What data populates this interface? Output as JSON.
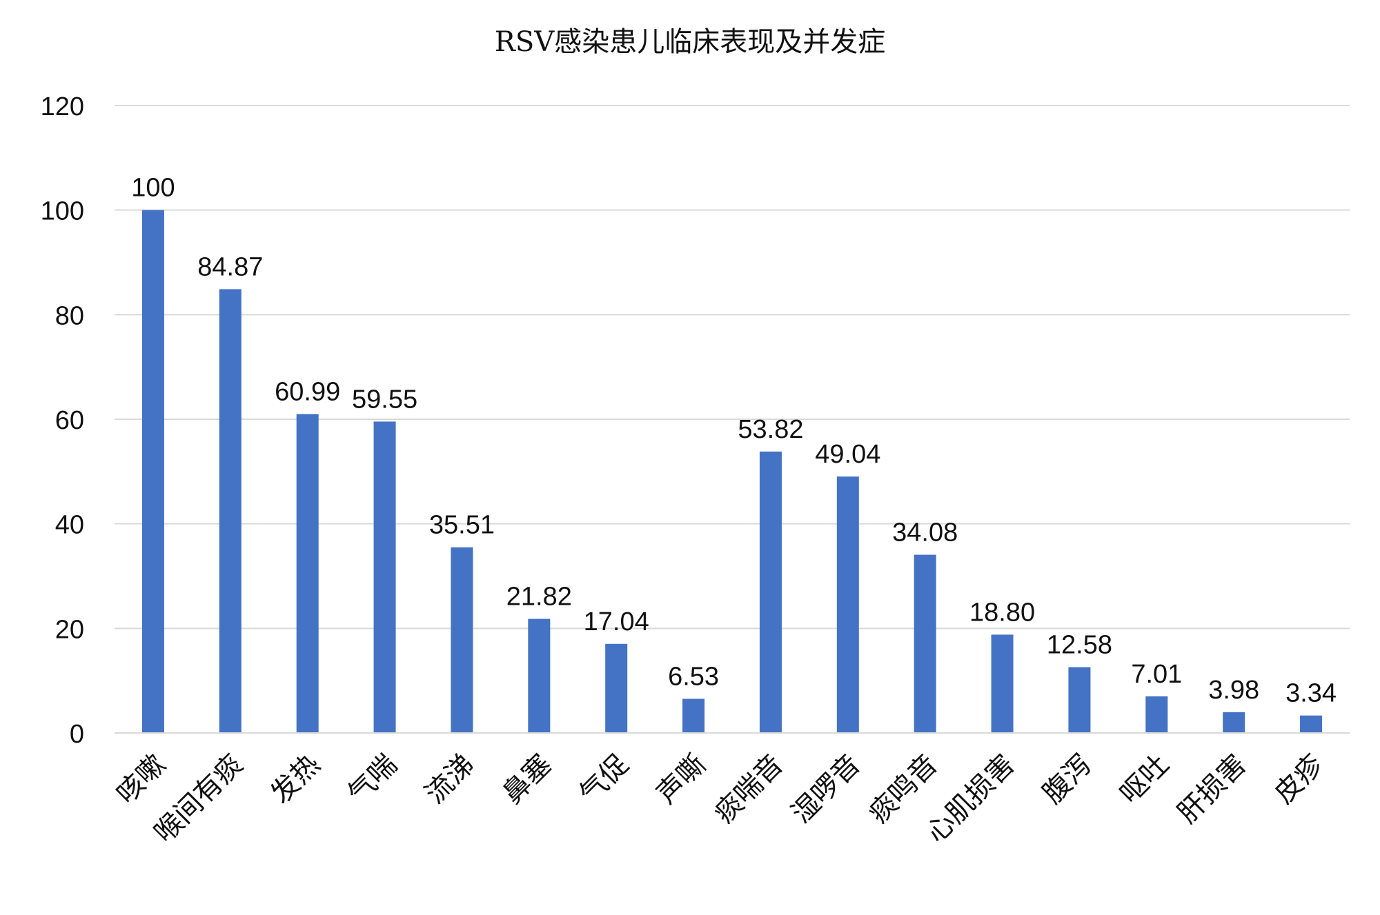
{
  "chart_data": {
    "type": "bar",
    "title": "RSV感染患儿临床表现及并发症",
    "xlabel": "",
    "ylabel": "",
    "ylim": [
      0,
      120
    ],
    "yticks": [
      0,
      20,
      40,
      60,
      80,
      100,
      120
    ],
    "grid": true,
    "legend": false,
    "bar_color": "#4472C4",
    "grid_color": "#D9D9D9",
    "axis_color": "#D9D9D9",
    "categories": [
      "咳嗽",
      "喉间有痰",
      "发热",
      "气喘",
      "流涕",
      "鼻塞",
      "气促",
      "声嘶",
      "痰喘音",
      "湿啰音",
      "痰鸣音",
      "心肌损害",
      "腹泻",
      "呕吐",
      "肝损害",
      "皮疹"
    ],
    "values": [
      100,
      84.87,
      60.99,
      59.55,
      35.51,
      21.82,
      17.04,
      6.53,
      53.82,
      49.04,
      34.08,
      18.8,
      12.58,
      7.01,
      3.98,
      3.34
    ],
    "value_labels": [
      "100",
      "84.87",
      "60.99",
      "59.55",
      "35.51",
      "21.82",
      "17.04",
      "6.53",
      "53.82",
      "49.04",
      "34.08",
      "18.80",
      "12.58",
      "7.01",
      "3.98",
      "3.34"
    ]
  }
}
